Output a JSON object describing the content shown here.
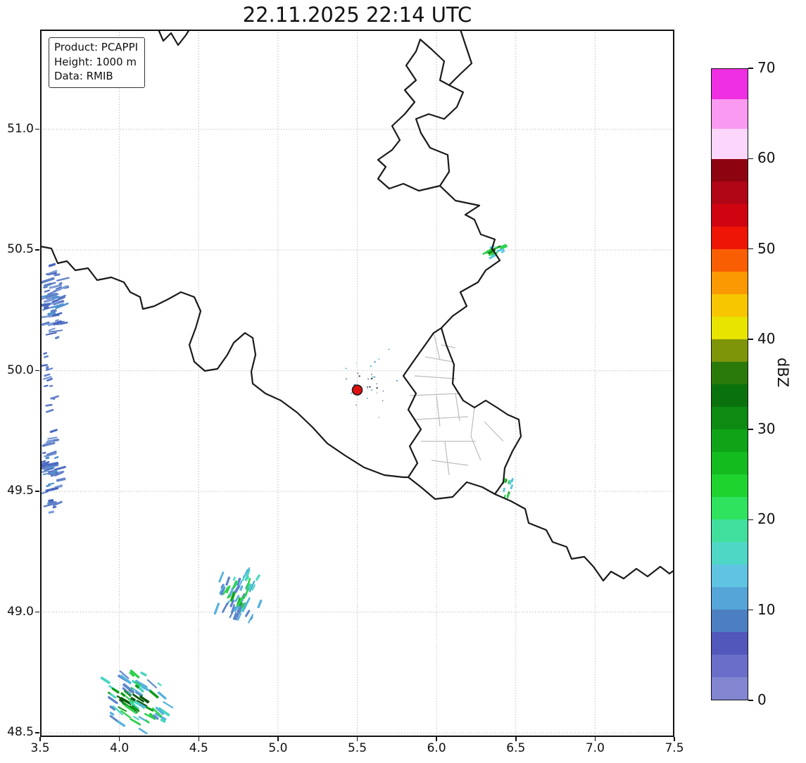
{
  "title": "22.11.2025 22:14 UTC",
  "info_box": {
    "lines": [
      "Product: PCAPPI",
      "Height: 1000 m",
      "Data: RMIB"
    ]
  },
  "colors": {
    "background": "#ffffff",
    "country_border": "#1a1a1a",
    "canton_border": "#bdbdbd",
    "grid": "#a9a9a9",
    "frame": "#111111",
    "radar_marker": "#e01010"
  },
  "chart_data": {
    "type": "heatmap",
    "title": "22.11.2025 22:14 UTC",
    "product": "PCAPPI",
    "product_height": "1000 m",
    "data_source": "RMIB",
    "xlabel": "",
    "ylabel": "",
    "grid": true,
    "x_range": [
      3.5,
      7.5
    ],
    "y_range": [
      48.47,
      51.41
    ],
    "x_ticks": [
      3.5,
      4.0,
      4.5,
      5.0,
      5.5,
      6.0,
      6.5,
      7.0,
      7.5
    ],
    "y_ticks": [
      48.5,
      49.0,
      49.5,
      50.0,
      50.5,
      51.0
    ],
    "radar_site": {
      "lon": 5.5,
      "lat": 49.92
    },
    "colorbar": {
      "label": "dBZ",
      "min": 0,
      "max": 70,
      "ticks": [
        0,
        10,
        20,
        30,
        40,
        50,
        60,
        70
      ],
      "bands": [
        [
          0,
          2.5,
          "#8285cf"
        ],
        [
          2.5,
          5,
          "#6b6ec8"
        ],
        [
          5,
          7.5,
          "#5257bb"
        ],
        [
          7.5,
          10,
          "#4c7ec2"
        ],
        [
          10,
          12.5,
          "#55a5d8"
        ],
        [
          12.5,
          15,
          "#5fc4e2"
        ],
        [
          15,
          17.5,
          "#4fd7c5"
        ],
        [
          17.5,
          20,
          "#41df9d"
        ],
        [
          20,
          22.5,
          "#2fe35f"
        ],
        [
          22.5,
          25,
          "#1fd32f"
        ],
        [
          25,
          27.5,
          "#14bb1f"
        ],
        [
          27.5,
          30,
          "#0fa318"
        ],
        [
          30,
          32.5,
          "#0c8a12"
        ],
        [
          32.5,
          35,
          "#0a720d"
        ],
        [
          35,
          37.5,
          "#2a7a0a"
        ],
        [
          37.5,
          40,
          "#7e950a"
        ],
        [
          40,
          42.5,
          "#e8e400"
        ],
        [
          42.5,
          45,
          "#f7c600"
        ],
        [
          45,
          47.5,
          "#fb9902"
        ],
        [
          47.5,
          50,
          "#f95f02"
        ],
        [
          50,
          52.5,
          "#ee1406"
        ],
        [
          52.5,
          55,
          "#d00410"
        ],
        [
          55,
          57.5,
          "#b00616"
        ],
        [
          57.5,
          60,
          "#8d0410"
        ],
        [
          60,
          63.33,
          "#fcd7fb"
        ],
        [
          63.33,
          66.66,
          "#fa9af0"
        ],
        [
          66.66,
          70,
          "#ee2fe2"
        ]
      ]
    },
    "echoes": [
      {
        "name": "west-edge-band-north",
        "lon": [
          3.5,
          3.68
        ],
        "lat": [
          50.12,
          50.46
        ],
        "max_dbz": 12,
        "angle": -15,
        "n": 55,
        "len": [
          5,
          24
        ],
        "th": [
          2,
          4
        ],
        "palette": [
          "#6180c8",
          "#4a68be",
          "#7b9bd6",
          "#4f93cf"
        ]
      },
      {
        "name": "west-edge-band-mid",
        "lon": [
          3.5,
          3.6
        ],
        "lat": [
          49.82,
          50.12
        ],
        "max_dbz": 10,
        "angle": -15,
        "n": 16,
        "len": [
          4,
          14
        ],
        "th": [
          2,
          3
        ],
        "palette": [
          "#6180c8",
          "#4a68be",
          "#7b9bd6"
        ]
      },
      {
        "name": "west-edge-band-south",
        "lon": [
          3.5,
          3.64
        ],
        "lat": [
          49.34,
          49.82
        ],
        "max_dbz": 12,
        "angle": -15,
        "n": 48,
        "len": [
          5,
          20
        ],
        "th": [
          2,
          4
        ],
        "palette": [
          "#6180c8",
          "#4a68be",
          "#7b9bd6",
          "#4f93cf"
        ]
      },
      {
        "name": "cell-northeast-border",
        "lon": [
          6.29,
          6.43
        ],
        "lat": [
          50.46,
          50.54
        ],
        "max_dbz": 32,
        "angle": -25,
        "n": 16,
        "len": [
          4,
          14
        ],
        "th": [
          2,
          3
        ],
        "palette": [
          "#55c8dc",
          "#2fd24e",
          "#0f9a16",
          "#0a6e0e"
        ]
      },
      {
        "name": "cell-moselle",
        "lon": [
          6.41,
          6.49
        ],
        "lat": [
          49.46,
          49.58
        ],
        "max_dbz": 26,
        "angle": -70,
        "n": 12,
        "len": [
          4,
          11
        ],
        "th": [
          2,
          3
        ],
        "palette": [
          "#55c8dc",
          "#2fd24e",
          "#128a14"
        ]
      },
      {
        "name": "cell-south-center",
        "lon": [
          4.58,
          4.92
        ],
        "lat": [
          48.96,
          49.18
        ],
        "max_dbz": 27,
        "angle": -65,
        "n": 60,
        "len": [
          5,
          18
        ],
        "th": [
          2,
          4
        ],
        "palette": [
          "#5d86ca",
          "#55b2dd",
          "#49d6c2",
          "#2fd24e",
          "#12a81c"
        ]
      },
      {
        "name": "band-southwest",
        "lon": [
          3.85,
          4.33
        ],
        "lat": [
          48.5,
          48.77
        ],
        "max_dbz": 33,
        "angle": 35,
        "n": 75,
        "len": [
          6,
          20
        ],
        "th": [
          2,
          4
        ],
        "palette": [
          "#5d86ca",
          "#55b2dd",
          "#49d6c2",
          "#2fd24e",
          "#0f9a16",
          "#0a5c0c"
        ]
      },
      {
        "name": "clutter-near-radar",
        "lon": [
          5.36,
          5.8
        ],
        "lat": [
          49.78,
          50.14
        ],
        "max_dbz": 8,
        "angle": 0,
        "n": 30,
        "len": [
          1,
          3
        ],
        "th": [
          1,
          2
        ],
        "palette": [
          "#46648c",
          "#5599cc",
          "#44bbcc",
          "#24365a"
        ]
      }
    ]
  }
}
